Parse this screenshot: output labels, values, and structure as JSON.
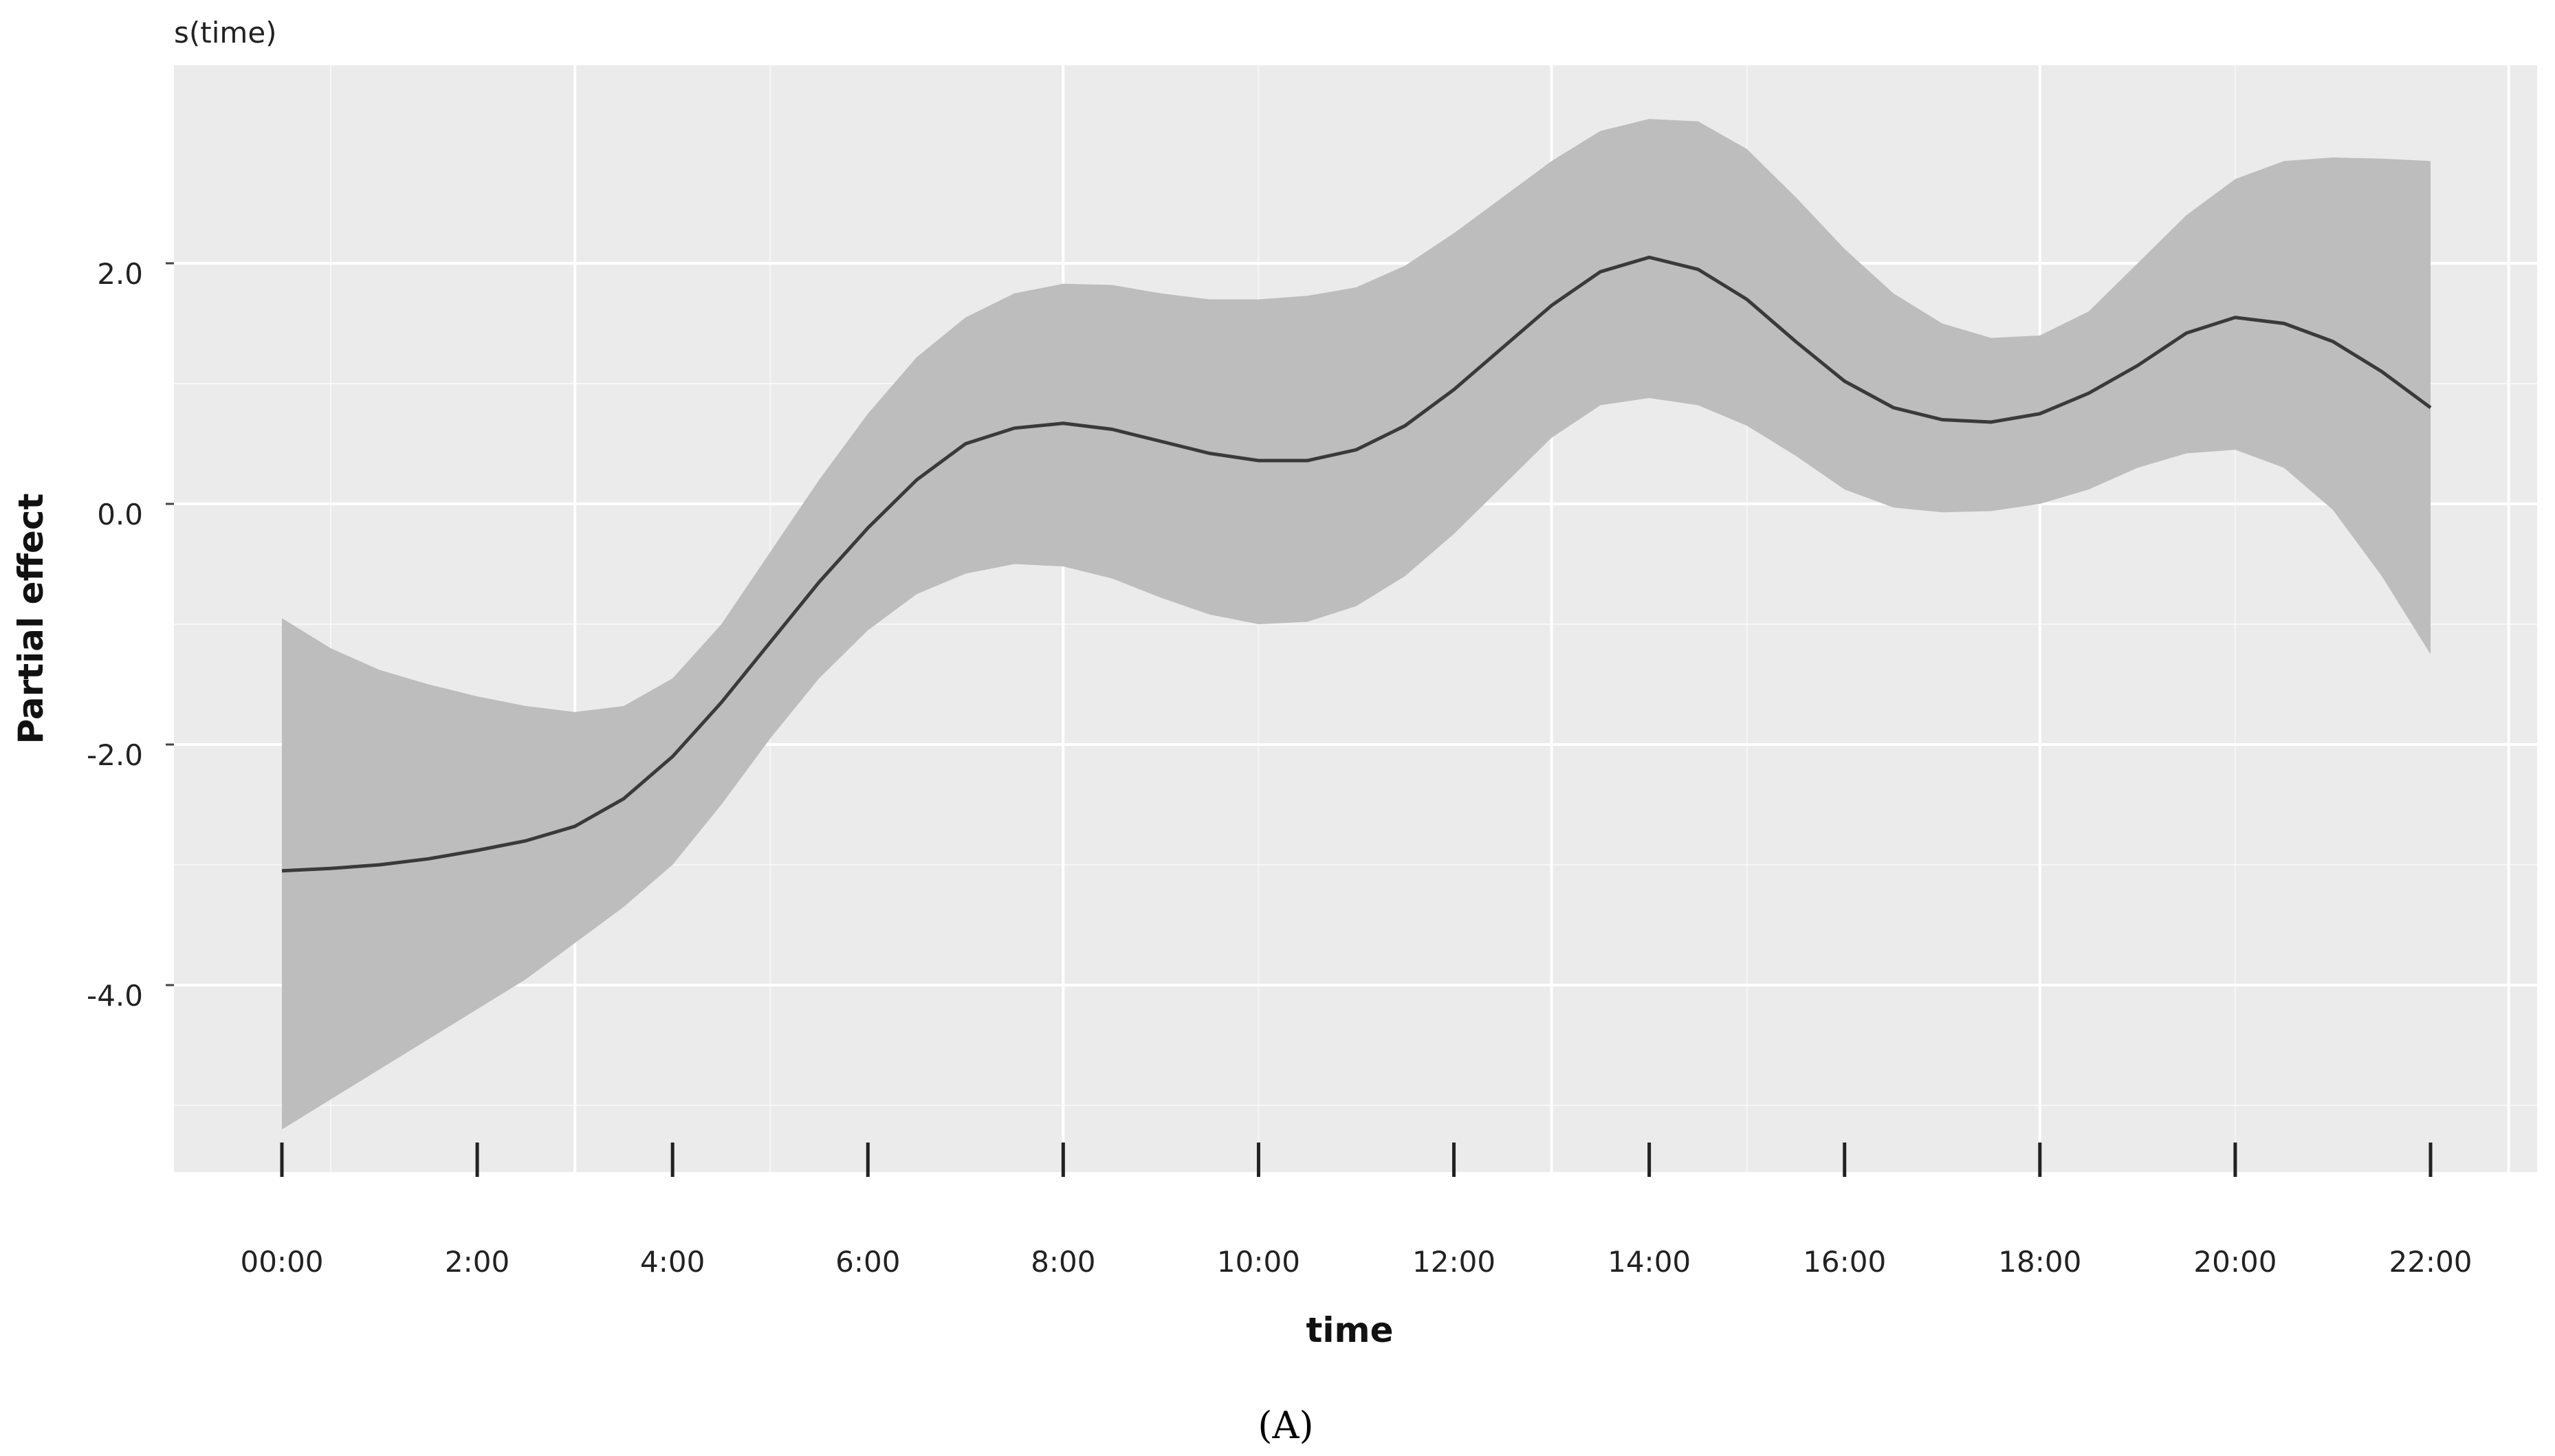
{
  "chart_data": {
    "type": "line",
    "title": "",
    "smooth_label": "s(time)",
    "xlabel": "time",
    "ylabel": "Partial effect",
    "panel_label": "(A)",
    "x_tick_labels": [
      "00:00",
      "2:00",
      "4:00",
      "6:00",
      "8:00",
      "10:00",
      "12:00",
      "14:00",
      "16:00",
      "18:00",
      "20:00",
      "22:00"
    ],
    "y_tick_labels": [
      "2.0",
      "0.0",
      "-2.0",
      "-4.0"
    ],
    "y_ticks": [
      2,
      0,
      -2,
      -4
    ],
    "xlim": [
      -0.5,
      23.1
    ],
    "ylim": [
      -5.5,
      3.6
    ],
    "grid": true,
    "rug_hours": [
      0,
      2,
      4,
      6,
      8,
      10,
      12,
      14,
      16,
      18,
      20,
      22
    ],
    "series": [
      {
        "x": [
          0,
          0.5,
          1,
          1.5,
          2,
          2.5,
          3,
          3.5,
          4,
          4.5,
          5,
          5.5,
          6,
          6.5,
          7,
          7.5,
          8,
          8.5,
          9,
          9.5,
          10,
          10.5,
          11,
          11.5,
          12,
          12.5,
          13,
          13.5,
          14,
          14.5,
          15,
          15.5,
          16,
          16.5,
          17,
          17.5,
          18,
          18.5,
          19,
          19.5,
          20,
          20.5,
          21,
          21.5,
          22
        ],
        "y": [
          -3.05,
          -3.03,
          -3.0,
          -2.95,
          -2.88,
          -2.8,
          -2.68,
          -2.45,
          -2.1,
          -1.65,
          -1.15,
          -0.65,
          -0.2,
          0.2,
          0.5,
          0.63,
          0.67,
          0.62,
          0.52,
          0.42,
          0.36,
          0.36,
          0.45,
          0.65,
          0.95,
          1.3,
          1.65,
          1.93,
          2.05,
          1.95,
          1.7,
          1.35,
          1.02,
          0.8,
          0.7,
          0.68,
          0.75,
          0.92,
          1.15,
          1.42,
          1.55,
          1.5,
          1.35,
          1.1,
          0.8
        ],
        "lower": [
          -5.2,
          -4.95,
          -4.7,
          -4.45,
          -4.2,
          -3.95,
          -3.65,
          -3.35,
          -3.0,
          -2.5,
          -1.95,
          -1.45,
          -1.05,
          -0.75,
          -0.58,
          -0.5,
          -0.52,
          -0.62,
          -0.78,
          -0.92,
          -1.0,
          -0.98,
          -0.85,
          -0.6,
          -0.25,
          0.15,
          0.55,
          0.82,
          0.88,
          0.82,
          0.65,
          0.4,
          0.12,
          -0.03,
          -0.07,
          -0.06,
          0.0,
          0.12,
          0.3,
          0.42,
          0.45,
          0.3,
          -0.05,
          -0.6,
          -1.25
        ],
        "upper": [
          -0.95,
          -1.2,
          -1.38,
          -1.5,
          -1.6,
          -1.68,
          -1.73,
          -1.68,
          -1.45,
          -1.0,
          -0.4,
          0.2,
          0.75,
          1.22,
          1.55,
          1.75,
          1.83,
          1.82,
          1.75,
          1.7,
          1.7,
          1.73,
          1.8,
          1.98,
          2.25,
          2.55,
          2.85,
          3.1,
          3.2,
          3.18,
          2.95,
          2.55,
          2.12,
          1.75,
          1.5,
          1.38,
          1.4,
          1.6,
          2.0,
          2.4,
          2.7,
          2.85,
          2.88,
          2.87,
          2.85
        ]
      }
    ]
  },
  "colors": {
    "panel_background": "#ebebeb",
    "grid": "#ffffff",
    "ribbon": "#bdbdbd",
    "line": "#3a3a3a",
    "rug": "#222222"
  }
}
